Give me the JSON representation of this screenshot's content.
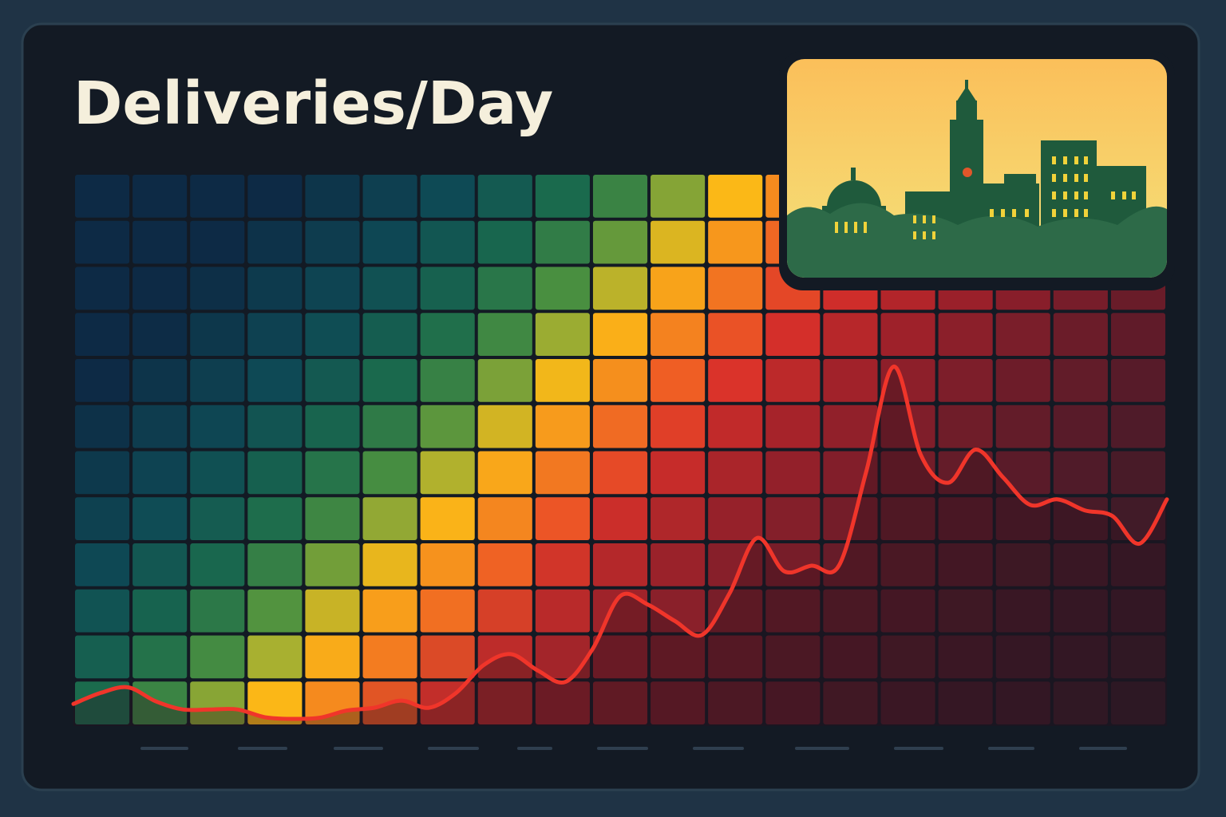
{
  "chart_data": {
    "type": "line",
    "title": "Deliveries/Day",
    "values": [
      4,
      6,
      7,
      4.5,
      3,
      3,
      3,
      1.6,
      1.3,
      1.5,
      2.8,
      3.3,
      4.6,
      3.3,
      6,
      11,
      13,
      10,
      8,
      14,
      23.5,
      22,
      19,
      16.5,
      24,
      34,
      28,
      29,
      29,
      46,
      65,
      49,
      44,
      50,
      45,
      40,
      41,
      39,
      38,
      33,
      41
    ],
    "color": "#f0352a",
    "ylim": [
      0,
      100
    ]
  }
}
